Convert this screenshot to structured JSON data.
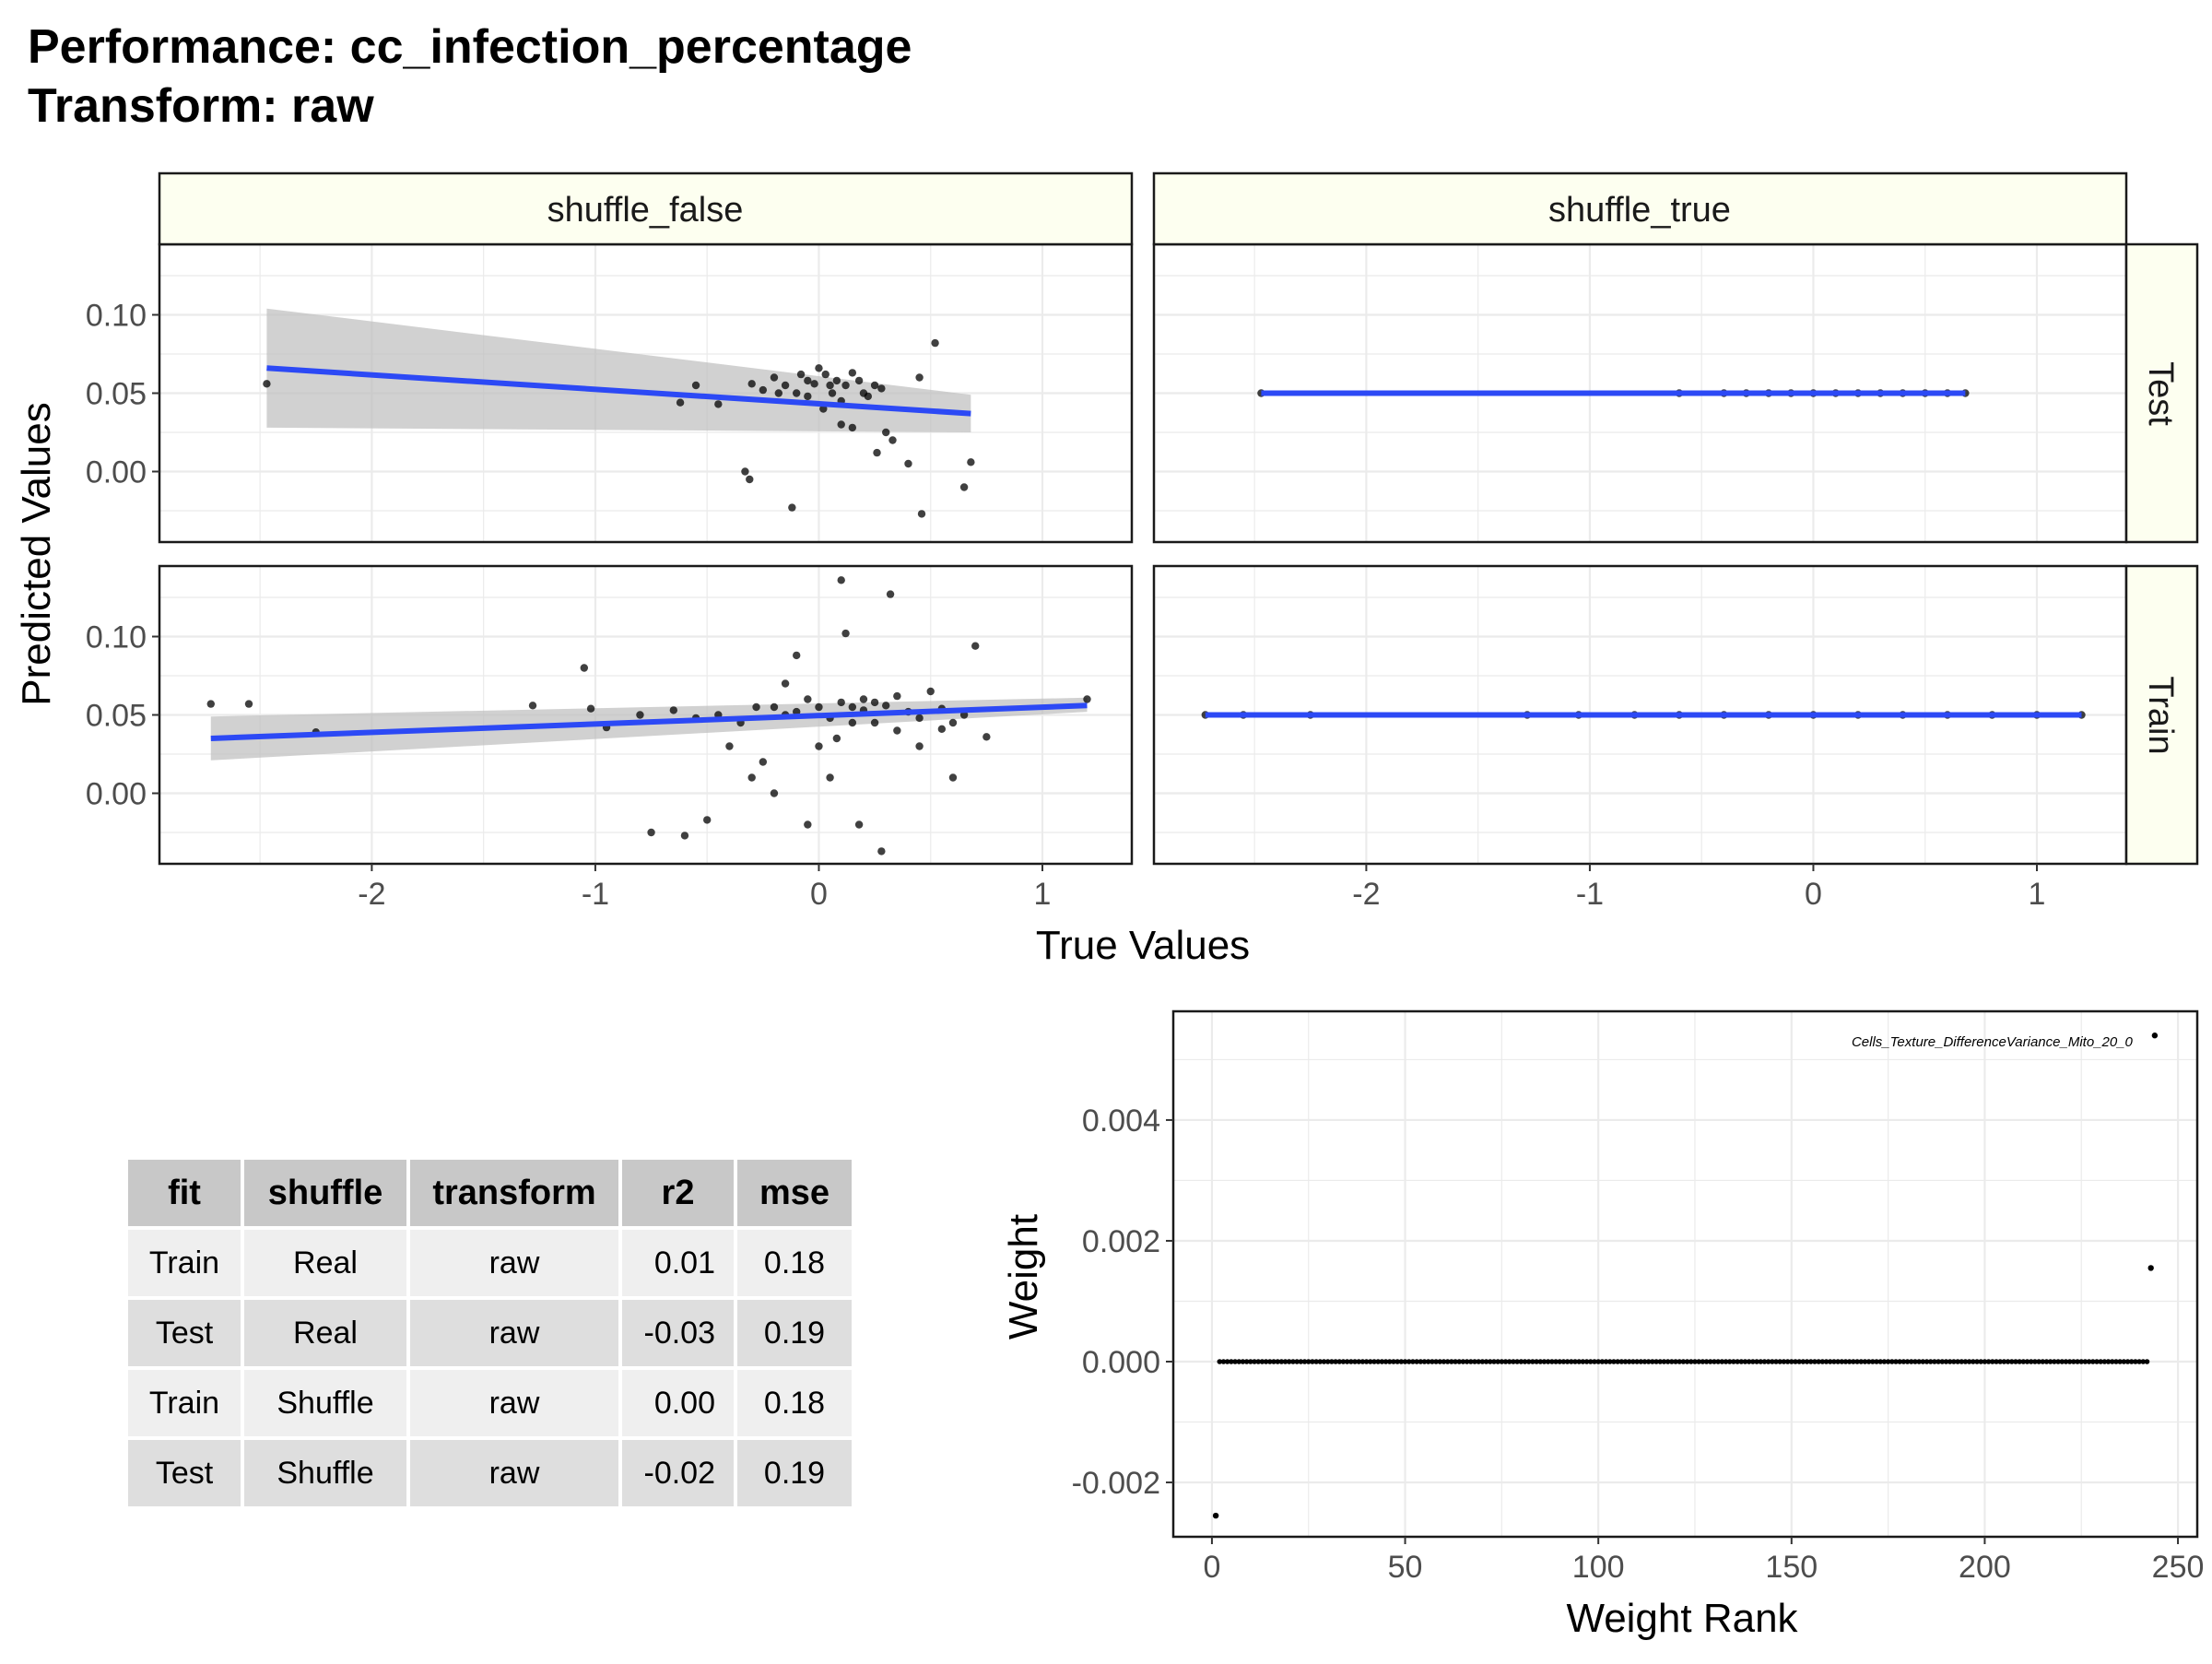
{
  "title": {
    "line1": "Performance: cc_infection_percentage",
    "line2": "Transform: raw"
  },
  "facet_labels": {
    "columns": [
      "shuffle_false",
      "shuffle_true"
    ],
    "rows": [
      "Test",
      "Train"
    ]
  },
  "axis_titles": {
    "x": "True Values",
    "y": "Predicted Values",
    "weight_x": "Weight Rank",
    "weight_y": "Weight"
  },
  "colors": {
    "strip_fill": "#fdfff0",
    "smooth_line": "#2c49f5",
    "ribbon": "#bdbdbd",
    "point": "#000000",
    "grid": "#ebebeb",
    "table_header": "#c8c8c8",
    "table_row_light": "#efefef",
    "table_row_dark": "#dedede"
  },
  "table": {
    "headers": [
      "fit",
      "shuffle",
      "transform",
      "r2",
      "mse"
    ],
    "rows": [
      [
        "Train",
        "Real",
        "raw",
        "0.01",
        "0.18"
      ],
      [
        "Test",
        "Real",
        "raw",
        "-0.03",
        "0.19"
      ],
      [
        "Train",
        "Shuffle",
        "raw",
        "0.00",
        "0.18"
      ],
      [
        "Test",
        "Shuffle",
        "raw",
        "-0.02",
        "0.19"
      ]
    ]
  },
  "chart_data": [
    {
      "type": "scatter",
      "title": "",
      "xlabel": "True Values",
      "ylabel": "Predicted Values",
      "xlim": [
        -2.95,
        1.4
      ],
      "ylim": [
        -0.045,
        0.145
      ],
      "x_ticks": [
        -2,
        -1,
        0,
        1
      ],
      "x_tick_labels": [
        "-2",
        "-1",
        "0",
        "1"
      ],
      "y_ticks": [
        0.0,
        0.05,
        0.1
      ],
      "y_tick_labels": [
        "0.00",
        "0.05",
        "0.10"
      ],
      "grid": true,
      "facets": {
        "columns": [
          "shuffle_false",
          "shuffle_true"
        ],
        "rows": [
          "Test",
          "Train"
        ]
      },
      "panels": [
        {
          "column": "shuffle_false",
          "row": "Test",
          "smooth": {
            "x": [
              -2.47,
              0.68
            ],
            "y": [
              0.066,
              0.037
            ],
            "ci_lo": [
              0.028,
              0.025
            ],
            "ci_hi": [
              0.104,
              0.049
            ]
          },
          "points": [
            [
              -2.47,
              0.056
            ],
            [
              -0.55,
              0.055
            ],
            [
              -0.62,
              0.044
            ],
            [
              -0.45,
              0.043
            ],
            [
              -0.33,
              0.0
            ],
            [
              -0.31,
              -0.005
            ],
            [
              -0.12,
              -0.023
            ],
            [
              -0.3,
              0.056
            ],
            [
              -0.25,
              0.052
            ],
            [
              -0.2,
              0.06
            ],
            [
              -0.15,
              0.055
            ],
            [
              -0.1,
              0.05
            ],
            [
              -0.05,
              0.058
            ],
            [
              0.0,
              0.066
            ],
            [
              0.03,
              0.062
            ],
            [
              0.06,
              0.05
            ],
            [
              0.1,
              0.045
            ],
            [
              0.12,
              0.055
            ],
            [
              0.15,
              0.063
            ],
            [
              0.2,
              0.05
            ],
            [
              0.22,
              0.048
            ],
            [
              0.25,
              0.055
            ],
            [
              0.3,
              0.025
            ],
            [
              0.33,
              0.02
            ],
            [
              0.4,
              0.005
            ],
            [
              0.45,
              0.06
            ],
            [
              0.52,
              0.082
            ],
            [
              0.65,
              -0.01
            ],
            [
              0.68,
              0.006
            ],
            [
              0.46,
              -0.027
            ],
            [
              0.1,
              0.03
            ],
            [
              0.15,
              0.028
            ],
            [
              -0.05,
              0.048
            ],
            [
              0.05,
              0.055
            ],
            [
              -0.18,
              0.05
            ],
            [
              0.08,
              0.058
            ],
            [
              0.18,
              0.058
            ],
            [
              0.28,
              0.053
            ],
            [
              -0.08,
              0.062
            ],
            [
              0.02,
              0.04
            ],
            [
              0.26,
              0.012
            ],
            [
              -0.02,
              0.056
            ]
          ]
        },
        {
          "column": "shuffle_true",
          "row": "Test",
          "smooth": {
            "x": [
              -2.47,
              0.68
            ],
            "y": [
              0.05,
              0.05
            ],
            "ci_lo": [
              0.0495,
              0.0495
            ],
            "ci_hi": [
              0.0505,
              0.0505
            ]
          },
          "points": [
            [
              -2.47,
              0.05
            ],
            [
              0.68,
              0.05
            ],
            [
              -0.6,
              0.05
            ],
            [
              -0.4,
              0.05
            ],
            [
              -0.3,
              0.05
            ],
            [
              -0.2,
              0.05
            ],
            [
              -0.1,
              0.05
            ],
            [
              0.0,
              0.05
            ],
            [
              0.1,
              0.05
            ],
            [
              0.2,
              0.05
            ],
            [
              0.3,
              0.05
            ],
            [
              0.4,
              0.05
            ],
            [
              0.5,
              0.05
            ],
            [
              0.6,
              0.05
            ]
          ]
        },
        {
          "column": "shuffle_false",
          "row": "Train",
          "smooth": {
            "x": [
              -2.72,
              1.2
            ],
            "y": [
              0.035,
              0.056
            ],
            "ci_lo": [
              0.021,
              0.052
            ],
            "ci_hi": [
              0.049,
              0.061
            ]
          },
          "points": [
            [
              -2.72,
              0.057
            ],
            [
              -2.55,
              0.057
            ],
            [
              -2.25,
              0.039
            ],
            [
              -1.28,
              0.056
            ],
            [
              -1.05,
              0.08
            ],
            [
              -1.02,
              0.054
            ],
            [
              -0.95,
              0.042
            ],
            [
              -0.8,
              0.05
            ],
            [
              -0.75,
              -0.025
            ],
            [
              -0.65,
              0.053
            ],
            [
              -0.6,
              -0.027
            ],
            [
              -0.55,
              0.048
            ],
            [
              -0.5,
              -0.017
            ],
            [
              -0.45,
              0.05
            ],
            [
              -0.4,
              0.03
            ],
            [
              -0.35,
              0.045
            ],
            [
              -0.3,
              0.01
            ],
            [
              -0.25,
              0.02
            ],
            [
              -0.2,
              0.0
            ],
            [
              -0.15,
              0.07
            ],
            [
              -0.1,
              0.088
            ],
            [
              -0.05,
              -0.02
            ],
            [
              0.0,
              0.03
            ],
            [
              0.05,
              0.01
            ],
            [
              0.1,
              0.136
            ],
            [
              0.12,
              0.102
            ],
            [
              0.15,
              0.055
            ],
            [
              0.2,
              0.06
            ],
            [
              0.25,
              0.045
            ],
            [
              0.28,
              -0.037
            ],
            [
              0.32,
              0.127
            ],
            [
              0.35,
              0.04
            ],
            [
              0.4,
              0.052
            ],
            [
              0.45,
              0.03
            ],
            [
              0.5,
              0.065
            ],
            [
              0.55,
              0.054
            ],
            [
              0.6,
              0.045
            ],
            [
              0.65,
              0.05
            ],
            [
              0.7,
              0.094
            ],
            [
              0.75,
              0.036
            ],
            [
              1.2,
              0.06
            ],
            [
              -0.2,
              0.055
            ],
            [
              -0.1,
              0.052
            ],
            [
              0.0,
              0.055
            ],
            [
              0.1,
              0.058
            ],
            [
              0.2,
              0.053
            ],
            [
              0.3,
              0.056
            ],
            [
              0.05,
              0.048
            ],
            [
              -0.05,
              0.06
            ],
            [
              0.15,
              0.045
            ],
            [
              0.25,
              0.058
            ],
            [
              -0.15,
              0.05
            ],
            [
              0.35,
              0.062
            ],
            [
              0.45,
              0.048
            ],
            [
              0.55,
              0.041
            ],
            [
              0.18,
              -0.02
            ],
            [
              0.08,
              0.035
            ],
            [
              -0.28,
              0.055
            ],
            [
              0.6,
              0.01
            ]
          ]
        },
        {
          "column": "shuffle_true",
          "row": "Train",
          "smooth": {
            "x": [
              -2.72,
              1.2
            ],
            "y": [
              0.05,
              0.05
            ],
            "ci_lo": [
              0.0495,
              0.0495
            ],
            "ci_hi": [
              0.0505,
              0.0505
            ]
          },
          "points": [
            [
              -2.72,
              0.05
            ],
            [
              1.2,
              0.05
            ],
            [
              -2.55,
              0.05
            ],
            [
              -2.25,
              0.05
            ],
            [
              -1.28,
              0.05
            ],
            [
              -1.05,
              0.05
            ],
            [
              -0.8,
              0.05
            ],
            [
              -0.6,
              0.05
            ],
            [
              -0.4,
              0.05
            ],
            [
              -0.2,
              0.05
            ],
            [
              0.0,
              0.05
            ],
            [
              0.2,
              0.05
            ],
            [
              0.4,
              0.05
            ],
            [
              0.6,
              0.05
            ],
            [
              0.8,
              0.05
            ],
            [
              1.0,
              0.05
            ]
          ]
        }
      ]
    },
    {
      "type": "scatter",
      "title": "",
      "xlabel": "Weight Rank",
      "ylabel": "Weight",
      "xlim": [
        -10,
        255
      ],
      "ylim": [
        -0.0029,
        0.0058
      ],
      "x_ticks": [
        0,
        50,
        100,
        150,
        200,
        250
      ],
      "x_tick_labels": [
        "0",
        "50",
        "100",
        "150",
        "200",
        "250"
      ],
      "y_ticks": [
        -0.002,
        0.0,
        0.002,
        0.004
      ],
      "y_tick_labels": [
        "-0.002",
        "0.000",
        "0.002",
        "0.004"
      ],
      "grid": true,
      "zero_run": {
        "from": 2,
        "to": 242,
        "value": 0.0
      },
      "points": [
        [
          1,
          -0.00255
        ],
        [
          243,
          0.00155
        ],
        [
          244,
          0.0054
        ]
      ],
      "annotations": [
        {
          "x": 244,
          "y": 0.0054,
          "text": "Cells_Texture_DifferenceVariance_Mito_20_0"
        }
      ]
    }
  ]
}
